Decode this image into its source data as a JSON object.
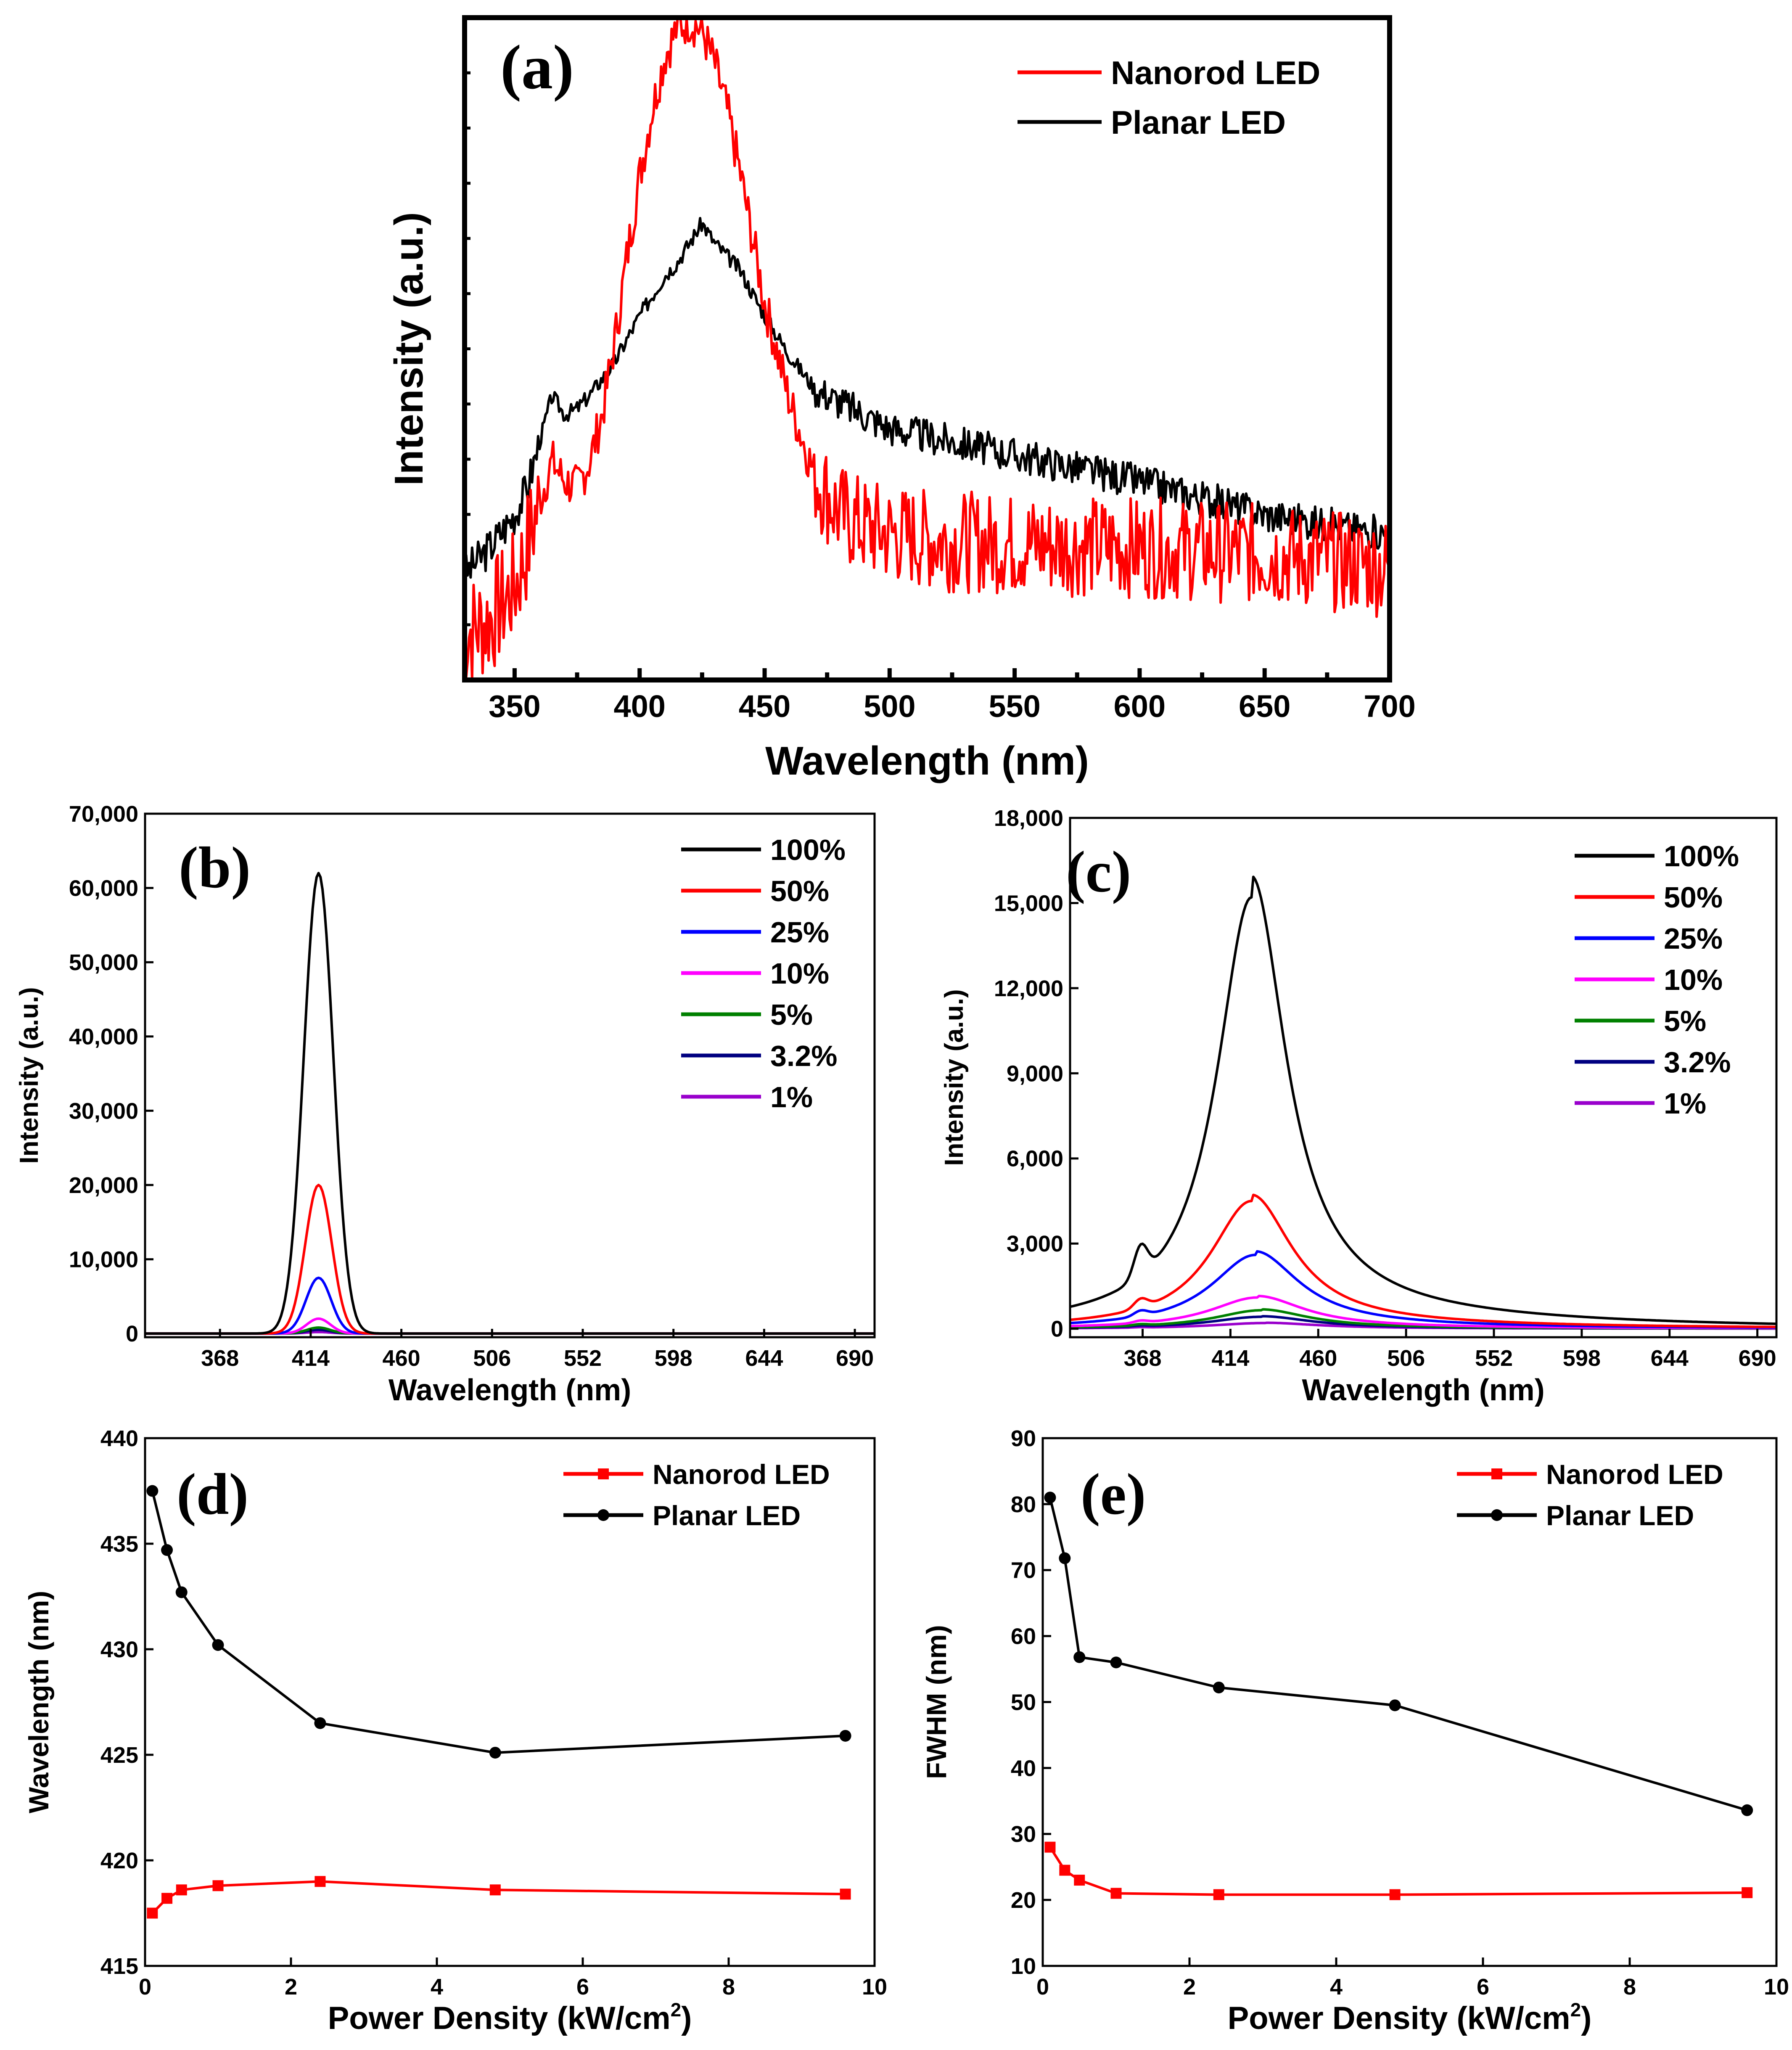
{
  "figure": {
    "background": "#ffffff"
  },
  "chart_data": [
    {
      "id": "a",
      "type": "line",
      "panel_label": "(a)",
      "xlabel": "Wavelength (nm)",
      "ylabel": "Intensity (a.u.)",
      "xlim": [
        330,
        700
      ],
      "ylim": [
        0,
        1
      ],
      "xticks": [
        350,
        400,
        450,
        500,
        550,
        600,
        650,
        700
      ],
      "yticks": [],
      "show_ytick_labels": false,
      "legend": {
        "position": "top-right"
      },
      "series": [
        {
          "name": "Nanorod LED",
          "color": "#ff0000",
          "noise": 0.035,
          "seed": 7,
          "x": [
            330,
            340,
            350,
            355,
            360,
            365,
            370,
            375,
            380,
            385,
            390,
            395,
            400,
            405,
            410,
            415,
            420,
            425,
            430,
            435,
            440,
            445,
            450,
            460,
            470,
            480,
            490,
            500,
            520,
            550,
            600,
            650,
            700
          ],
          "y": [
            0.07,
            0.09,
            0.14,
            0.2,
            0.27,
            0.33,
            0.3,
            0.29,
            0.33,
            0.4,
            0.51,
            0.64,
            0.76,
            0.86,
            0.94,
            0.985,
            0.995,
            0.98,
            0.93,
            0.86,
            0.77,
            0.67,
            0.57,
            0.42,
            0.31,
            0.25,
            0.23,
            0.22,
            0.21,
            0.205,
            0.2,
            0.19,
            0.17
          ]
        },
        {
          "name": "Planar LED",
          "color": "#000000",
          "noise": 0.012,
          "seed": 3,
          "x": [
            330,
            340,
            350,
            355,
            360,
            365,
            370,
            375,
            380,
            390,
            400,
            410,
            415,
            420,
            425,
            430,
            440,
            450,
            460,
            470,
            480,
            500,
            550,
            600,
            650,
            700
          ],
          "y": [
            0.16,
            0.2,
            0.25,
            0.29,
            0.36,
            0.43,
            0.4,
            0.41,
            0.43,
            0.48,
            0.55,
            0.61,
            0.63,
            0.66,
            0.69,
            0.66,
            0.62,
            0.55,
            0.49,
            0.44,
            0.42,
            0.38,
            0.34,
            0.3,
            0.25,
            0.22
          ]
        }
      ]
    },
    {
      "id": "b",
      "type": "line",
      "panel_label": "(b)",
      "xlabel": "Wavelength (nm)",
      "ylabel": "Intensity (a.u.)",
      "xlim": [
        330,
        700
      ],
      "ylim": [
        -500,
        70000
      ],
      "xticks": [
        368,
        414,
        460,
        506,
        552,
        598,
        644,
        690
      ],
      "yticks": [
        0,
        10000,
        20000,
        30000,
        40000,
        50000,
        60000,
        70000
      ],
      "ytick_labels": [
        "0",
        "10,000",
        "20,000",
        "30,000",
        "40,000",
        "50,000",
        "60,000",
        "70,000"
      ],
      "legend": {
        "position": "top-right"
      },
      "series": [
        {
          "name": "100%",
          "color": "#000000",
          "peak": 62000,
          "center": 418,
          "width": 10
        },
        {
          "name": "50%",
          "color": "#ff0000",
          "peak": 20000,
          "center": 418,
          "width": 9
        },
        {
          "name": "25%",
          "color": "#0000ff",
          "peak": 7500,
          "center": 418,
          "width": 8.5
        },
        {
          "name": "10%",
          "color": "#ff00ff",
          "peak": 2000,
          "center": 418,
          "width": 8
        },
        {
          "name": "5%",
          "color": "#008000",
          "peak": 800,
          "center": 418,
          "width": 8
        },
        {
          "name": "3.2%",
          "color": "#000080",
          "peak": 500,
          "center": 418,
          "width": 8
        },
        {
          "name": "1%",
          "color": "#9900cc",
          "peak": 200,
          "center": 418,
          "width": 8
        }
      ]
    },
    {
      "id": "c",
      "type": "line",
      "panel_label": "(c)",
      "xlabel": "Wavelength (nm)",
      "ylabel": "Intensity (a.u.)",
      "xlim": [
        330,
        700
      ],
      "ylim": [
        -300,
        18000
      ],
      "xticks": [
        368,
        414,
        460,
        506,
        552,
        598,
        644,
        690
      ],
      "yticks": [
        0,
        3000,
        6000,
        9000,
        12000,
        15000,
        18000
      ],
      "ytick_labels": [
        "0",
        "3,000",
        "6,000",
        "9,000",
        "12,000",
        "15,000",
        "18,000"
      ],
      "legend": {
        "position": "top-right"
      },
      "series": [
        {
          "name": "100%",
          "color": "#000000",
          "peak": 15200,
          "center": 425,
          "width": 22
        },
        {
          "name": "50%",
          "color": "#ff0000",
          "peak": 4500,
          "center": 425,
          "width": 26
        },
        {
          "name": "25%",
          "color": "#0000ff",
          "peak": 2600,
          "center": 427,
          "width": 28
        },
        {
          "name": "10%",
          "color": "#ff00ff",
          "peak": 1100,
          "center": 428,
          "width": 30
        },
        {
          "name": "5%",
          "color": "#008000",
          "peak": 650,
          "center": 430,
          "width": 30
        },
        {
          "name": "3.2%",
          "color": "#000080",
          "peak": 420,
          "center": 430,
          "width": 32
        },
        {
          "name": "1%",
          "color": "#9900cc",
          "peak": 200,
          "center": 432,
          "width": 34
        }
      ]
    },
    {
      "id": "d",
      "type": "line",
      "panel_label": "(d)",
      "xlabel": "Power Density (kW/cm2)",
      "ylabel": "Wavelength (nm)",
      "xlim": [
        0,
        10
      ],
      "ylim": [
        415,
        440
      ],
      "xticks": [
        0,
        2,
        4,
        6,
        8,
        10
      ],
      "yticks": [
        415,
        420,
        425,
        430,
        435,
        440
      ],
      "legend": {
        "position": "top-right"
      },
      "series": [
        {
          "name": "Nanorod LED",
          "color": "#ff0000",
          "marker": "square",
          "x": [
            0.1,
            0.3,
            0.5,
            1.0,
            2.4,
            4.8,
            9.6
          ],
          "y": [
            417.5,
            418.2,
            418.6,
            418.8,
            419.0,
            418.6,
            418.4
          ]
        },
        {
          "name": "Planar LED",
          "color": "#000000",
          "marker": "circle",
          "x": [
            0.1,
            0.3,
            0.5,
            1.0,
            2.4,
            4.8,
            9.6
          ],
          "y": [
            437.5,
            434.7,
            432.7,
            430.2,
            426.5,
            425.1,
            425.9
          ]
        }
      ]
    },
    {
      "id": "e",
      "type": "line",
      "panel_label": "(e)",
      "xlabel": "Power Density (kW/cm2)",
      "ylabel": "FWHM (nm)",
      "xlim": [
        0,
        10
      ],
      "ylim": [
        10,
        90
      ],
      "xticks": [
        0,
        2,
        4,
        6,
        8,
        10
      ],
      "yticks": [
        10,
        20,
        30,
        40,
        50,
        60,
        70,
        80,
        90
      ],
      "legend": {
        "position": "top-right"
      },
      "series": [
        {
          "name": "Nanorod LED",
          "color": "#ff0000",
          "marker": "square",
          "x": [
            0.1,
            0.3,
            0.5,
            1.0,
            2.4,
            4.8,
            9.6
          ],
          "y": [
            28.0,
            24.5,
            23.0,
            21.0,
            20.8,
            20.8,
            21.1
          ]
        },
        {
          "name": "Planar LED",
          "color": "#000000",
          "marker": "circle",
          "x": [
            0.1,
            0.3,
            0.5,
            1.0,
            2.4,
            4.8,
            9.6
          ],
          "y": [
            81.0,
            71.8,
            56.8,
            56.0,
            52.2,
            49.5,
            33.6
          ]
        }
      ]
    }
  ]
}
